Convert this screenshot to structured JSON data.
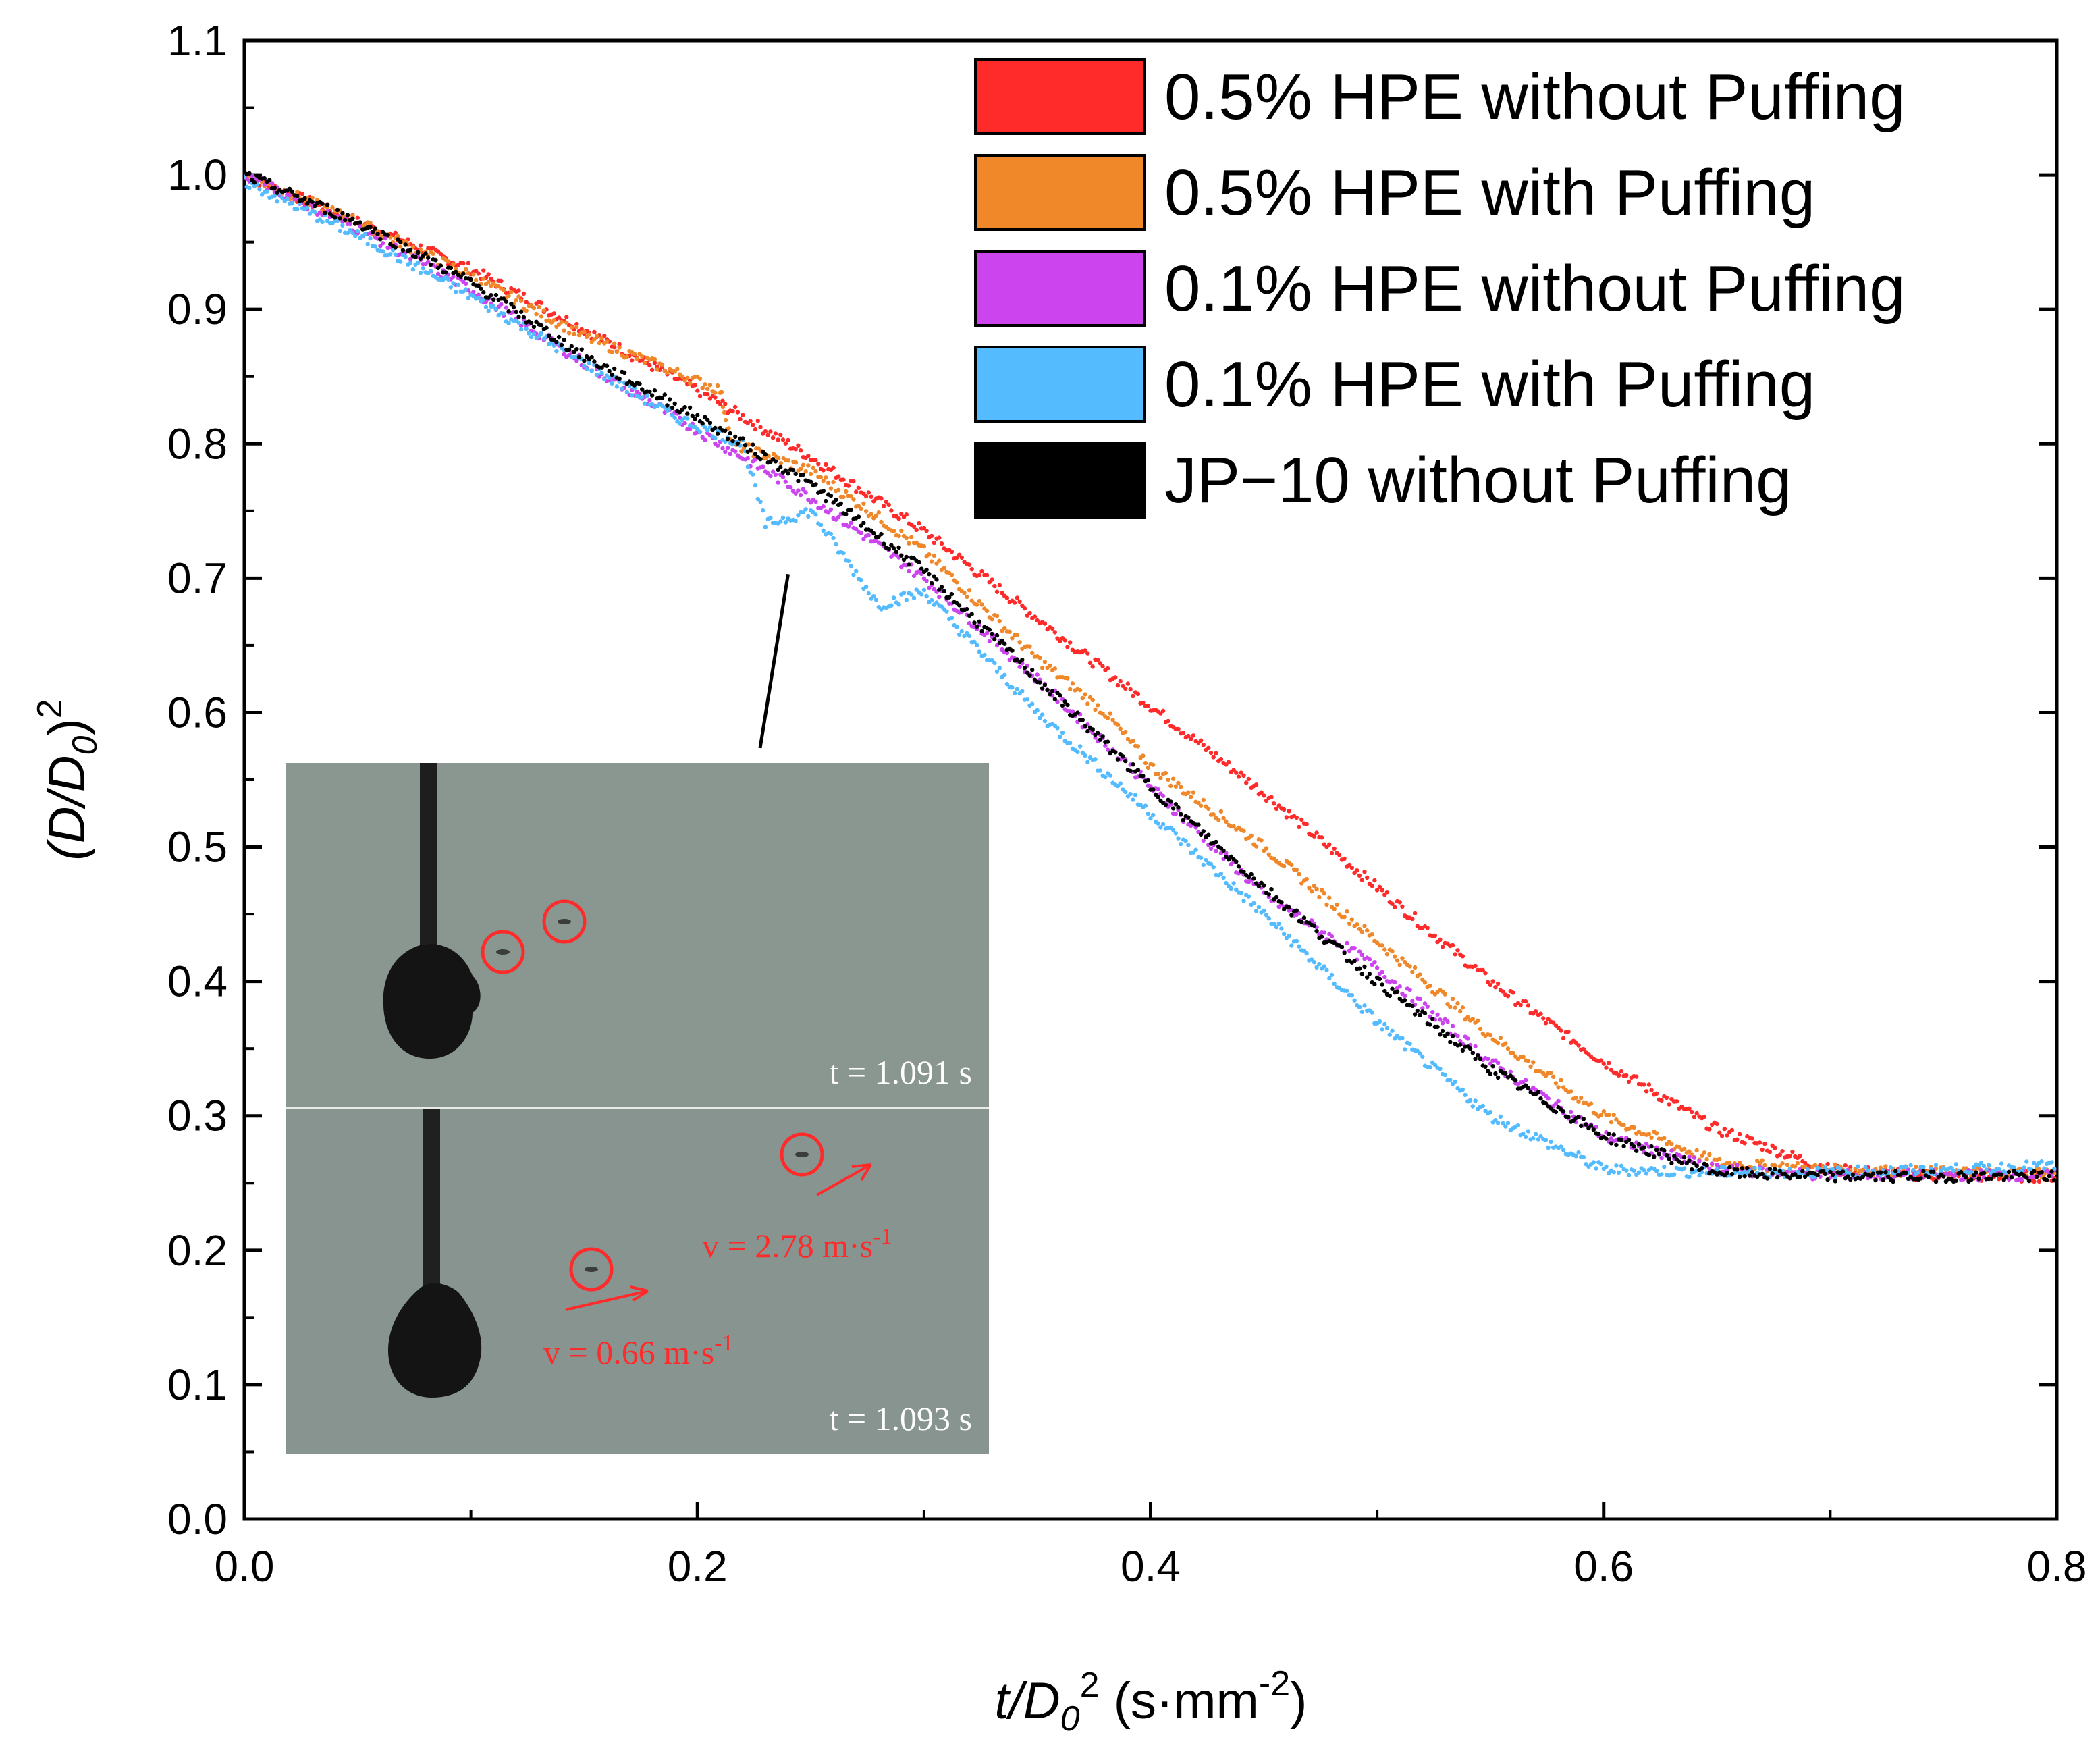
{
  "chart_data": {
    "type": "scatter",
    "title": "",
    "xlabel": {
      "var": "t/D",
      "sub": "0",
      "sup": "2",
      "unit_pre": " (s·mm",
      "unit_sup": "-2",
      "unit_post": ")"
    },
    "ylabel": {
      "pre": "(D/D",
      "sub": "0",
      "post": ")",
      "sup": "2"
    },
    "xlim": [
      0.0,
      0.8
    ],
    "ylim": [
      0.0,
      1.1
    ],
    "x_ticks": [
      "0.0",
      "0.2",
      "0.4",
      "0.6",
      "0.8"
    ],
    "y_ticks": [
      "0.0",
      "0.1",
      "0.2",
      "0.3",
      "0.4",
      "0.5",
      "0.6",
      "0.7",
      "0.8",
      "0.9",
      "1.0",
      "1.1"
    ],
    "legend_position": "top-right",
    "series": [
      {
        "name": "0.5% HPE without Puffing",
        "color": "#ff2a2a",
        "points": [
          [
            0,
            1.0
          ],
          [
            0.05,
            0.965
          ],
          [
            0.1,
            0.93
          ],
          [
            0.15,
            0.885
          ],
          [
            0.2,
            0.84
          ],
          [
            0.25,
            0.79
          ],
          [
            0.3,
            0.735
          ],
          [
            0.35,
            0.67
          ],
          [
            0.4,
            0.605
          ],
          [
            0.45,
            0.54
          ],
          [
            0.5,
            0.47
          ],
          [
            0.55,
            0.4
          ],
          [
            0.6,
            0.34
          ],
          [
            0.65,
            0.29
          ],
          [
            0.7,
            0.26
          ],
          [
            0.75,
            0.255
          ],
          [
            0.8,
            0.255
          ]
        ]
      },
      {
        "name": "0.5% HPE with Puffing",
        "color": "#f0882a",
        "points": [
          [
            0,
            1.0
          ],
          [
            0.05,
            0.965
          ],
          [
            0.1,
            0.925
          ],
          [
            0.15,
            0.88
          ],
          [
            0.21,
            0.84
          ],
          [
            0.215,
            0.8
          ],
          [
            0.25,
            0.78
          ],
          [
            0.28,
            0.745
          ],
          [
            0.3,
            0.72
          ],
          [
            0.35,
            0.64
          ],
          [
            0.38,
            0.6
          ],
          [
            0.4,
            0.56
          ],
          [
            0.45,
            0.5
          ],
          [
            0.5,
            0.43
          ],
          [
            0.55,
            0.36
          ],
          [
            0.6,
            0.3
          ],
          [
            0.65,
            0.265
          ],
          [
            0.7,
            0.26
          ],
          [
            0.75,
            0.258
          ],
          [
            0.8,
            0.258
          ]
        ]
      },
      {
        "name": "0.1% HPE without Puffing",
        "color": "#cc44ee",
        "points": [
          [
            0,
            1.0
          ],
          [
            0.05,
            0.96
          ],
          [
            0.1,
            0.915
          ],
          [
            0.15,
            0.86
          ],
          [
            0.2,
            0.81
          ],
          [
            0.25,
            0.76
          ],
          [
            0.3,
            0.7
          ],
          [
            0.35,
            0.625
          ],
          [
            0.4,
            0.545
          ],
          [
            0.45,
            0.465
          ],
          [
            0.5,
            0.41
          ],
          [
            0.55,
            0.34
          ],
          [
            0.6,
            0.285
          ],
          [
            0.65,
            0.26
          ],
          [
            0.7,
            0.256
          ],
          [
            0.75,
            0.256
          ],
          [
            0.8,
            0.256
          ]
        ]
      },
      {
        "name": "0.1% HPE with Puffing",
        "color": "#55bbff",
        "points": [
          [
            0,
            0.995
          ],
          [
            0.05,
            0.955
          ],
          [
            0.1,
            0.91
          ],
          [
            0.15,
            0.86
          ],
          [
            0.19,
            0.82
          ],
          [
            0.22,
            0.8
          ],
          [
            0.23,
            0.74
          ],
          [
            0.25,
            0.75
          ],
          [
            0.28,
            0.68
          ],
          [
            0.3,
            0.69
          ],
          [
            0.35,
            0.6
          ],
          [
            0.4,
            0.525
          ],
          [
            0.45,
            0.45
          ],
          [
            0.5,
            0.37
          ],
          [
            0.55,
            0.3
          ],
          [
            0.6,
            0.26
          ],
          [
            0.65,
            0.258
          ],
          [
            0.7,
            0.258
          ],
          [
            0.75,
            0.26
          ],
          [
            0.8,
            0.263
          ]
        ]
      },
      {
        "name": "JP−10 without Puffing",
        "color": "#000000",
        "points": [
          [
            0,
            1.0
          ],
          [
            0.05,
            0.965
          ],
          [
            0.1,
            0.92
          ],
          [
            0.15,
            0.865
          ],
          [
            0.2,
            0.82
          ],
          [
            0.25,
            0.77
          ],
          [
            0.3,
            0.705
          ],
          [
            0.35,
            0.625
          ],
          [
            0.4,
            0.545
          ],
          [
            0.45,
            0.47
          ],
          [
            0.5,
            0.4
          ],
          [
            0.55,
            0.335
          ],
          [
            0.6,
            0.285
          ],
          [
            0.65,
            0.258
          ],
          [
            0.7,
            0.255
          ],
          [
            0.75,
            0.255
          ],
          [
            0.8,
            0.255
          ]
        ]
      }
    ],
    "inset": {
      "frame_top_time": "t = 1.091 s",
      "frame_bottom_time": "t = 1.093 s",
      "velocity_1": "v = 2.78 m·s",
      "velocity_1_exp": "-1",
      "velocity_2": "v = 0.66 m·s",
      "velocity_2_exp": "-1",
      "pointer_target": [
        0.24,
        0.7
      ]
    }
  }
}
